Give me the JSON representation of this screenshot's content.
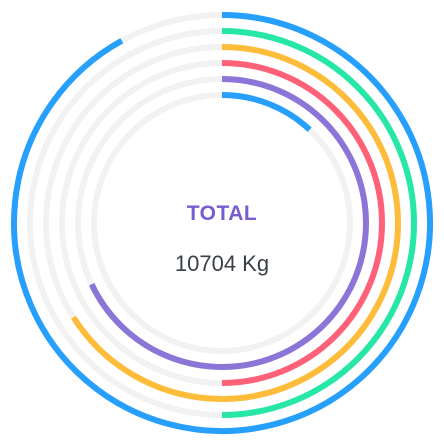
{
  "chart_data": {
    "type": "radialBar",
    "total_label": "TOTAL",
    "total_value": "10704 Kg",
    "series": [
      {
        "color": "#26a0fc",
        "percent": 92
      },
      {
        "color": "#26e7a6",
        "percent": 50
      },
      {
        "color": "#febc3b",
        "percent": 66
      },
      {
        "color": "#ff6178",
        "percent": 50
      },
      {
        "color": "#8b75d7",
        "percent": 68
      },
      {
        "color": "#26a0fc",
        "percent": 12
      }
    ],
    "track_color": "#f2f2f2",
    "label_color": "#775dd0"
  }
}
